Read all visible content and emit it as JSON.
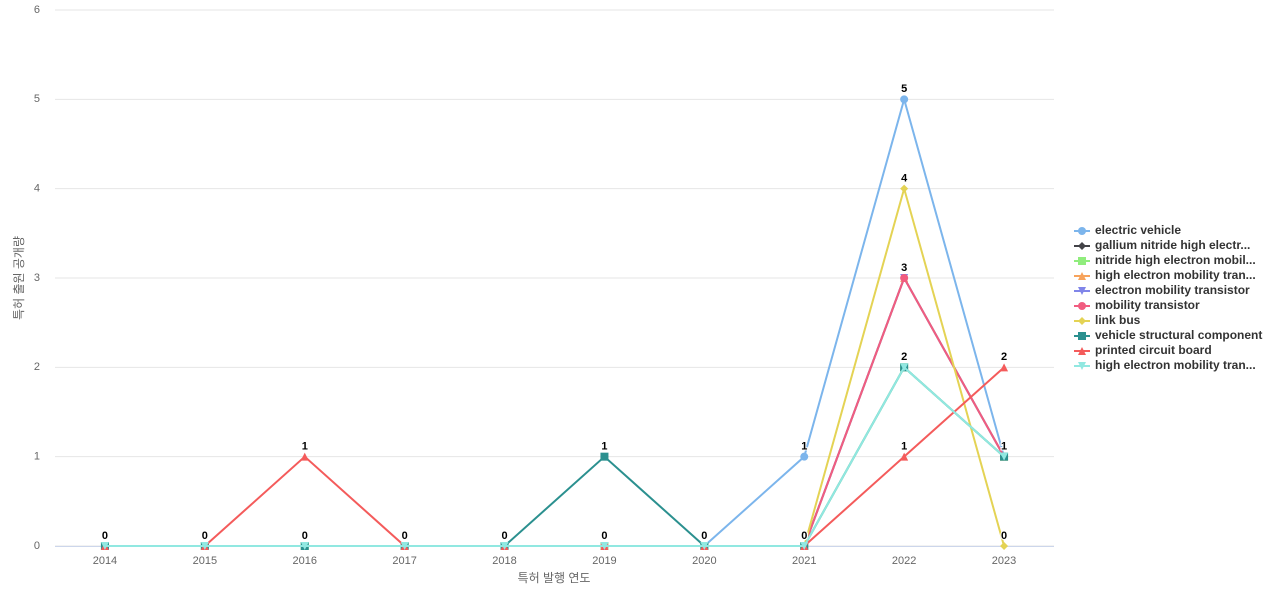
{
  "chart_data": {
    "type": "line",
    "x_label": "특허 발행 연도",
    "y_label": "특허 출원 공개량",
    "categories": [
      "2014",
      "2015",
      "2016",
      "2017",
      "2018",
      "2019",
      "2020",
      "2021",
      "2022",
      "2023"
    ],
    "ylim": [
      0,
      6
    ],
    "yticks": [
      0,
      1,
      2,
      3,
      4,
      5,
      6
    ],
    "grid": true,
    "legend": "right",
    "series": [
      {
        "name": "electric vehicle",
        "color": "#7cb5ec",
        "marker": "circle",
        "values": [
          0,
          0,
          0,
          0,
          0,
          0,
          0,
          1,
          5,
          1
        ]
      },
      {
        "name": "gallium nitride high electr...",
        "color": "#434348",
        "marker": "diamond",
        "values": [
          0,
          0,
          0,
          0,
          0,
          0,
          0,
          0,
          3,
          1
        ]
      },
      {
        "name": "nitride high electron mobil...",
        "color": "#90ed7d",
        "marker": "square",
        "values": [
          0,
          0,
          0,
          0,
          0,
          0,
          0,
          0,
          2,
          1
        ]
      },
      {
        "name": "high electron mobility tran...",
        "color": "#f7a35c",
        "marker": "triangle",
        "values": [
          0,
          0,
          0,
          0,
          0,
          0,
          0,
          0,
          3,
          1
        ]
      },
      {
        "name": "electron mobility transistor",
        "color": "#8085e9",
        "marker": "triangle-down",
        "values": [
          0,
          0,
          0,
          0,
          0,
          0,
          0,
          0,
          3,
          1
        ]
      },
      {
        "name": "mobility transistor",
        "color": "#f15c80",
        "marker": "circle",
        "values": [
          0,
          0,
          0,
          0,
          0,
          0,
          0,
          0,
          3,
          1
        ]
      },
      {
        "name": "link bus",
        "color": "#e4d354",
        "marker": "diamond",
        "values": [
          0,
          0,
          0,
          0,
          0,
          0,
          0,
          0,
          4,
          0
        ]
      },
      {
        "name": "vehicle structural component",
        "color": "#2b908f",
        "marker": "square",
        "values": [
          0,
          0,
          0,
          0,
          0,
          1,
          0,
          0,
          2,
          1
        ]
      },
      {
        "name": "printed circuit board",
        "color": "#f45b5b",
        "marker": "triangle",
        "values": [
          0,
          0,
          1,
          0,
          0,
          0,
          0,
          0,
          1,
          2
        ]
      },
      {
        "name": "high electron mobility tran...",
        "color": "#91e8e1",
        "marker": "triangle-down",
        "values": [
          0,
          0,
          0,
          0,
          0,
          0,
          0,
          0,
          2,
          1
        ]
      }
    ]
  }
}
